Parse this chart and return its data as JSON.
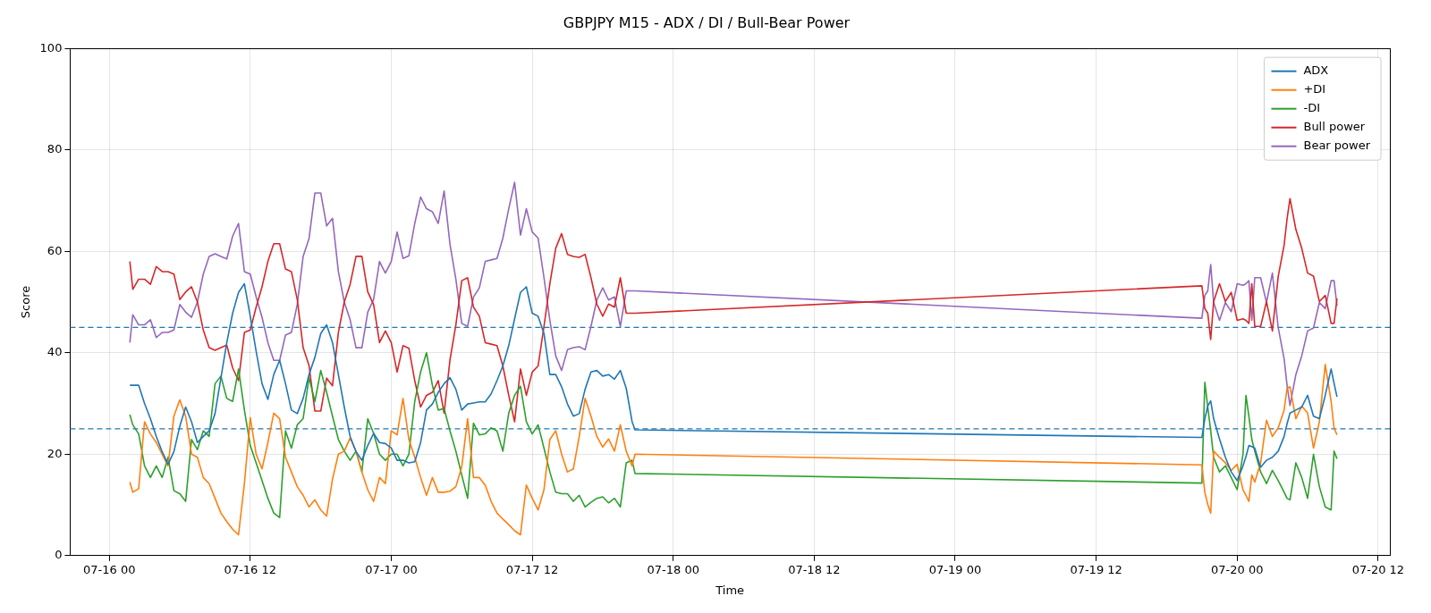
{
  "chart_data": {
    "type": "line",
    "title": "GBPJPY M15 - ADX / DI / Bull-Bear Power",
    "xlabel": "Time",
    "ylabel": "Score",
    "x": [
      "--07-16T01:45",
      "--07-16T02:00",
      "--07-16T02:30",
      "--07-16T03:00",
      "--07-16T03:30",
      "--07-16T04:00",
      "--07-16T04:30",
      "--07-16T05:00",
      "--07-16T05:30",
      "--07-16T06:00",
      "--07-16T06:30",
      "--07-16T07:00",
      "--07-16T07:30",
      "--07-16T08:00",
      "--07-16T08:30",
      "--07-16T09:00",
      "--07-16T09:30",
      "--07-16T10:00",
      "--07-16T10:30",
      "--07-16T11:00",
      "--07-16T11:30",
      "--07-16T12:00",
      "--07-16T12:30",
      "--07-16T13:00",
      "--07-16T13:30",
      "--07-16T14:00",
      "--07-16T14:30",
      "--07-16T15:00",
      "--07-16T15:30",
      "--07-16T16:00",
      "--07-16T16:30",
      "--07-16T17:00",
      "--07-16T17:30",
      "--07-16T18:00",
      "--07-16T18:30",
      "--07-16T19:00",
      "--07-16T19:30",
      "--07-16T20:00",
      "--07-16T20:30",
      "--07-16T21:00",
      "--07-16T21:30",
      "--07-16T22:00",
      "--07-16T22:30",
      "--07-16T23:00",
      "--07-16T23:30",
      "--07-17T00:00",
      "--07-17T00:30",
      "--07-17T01:00",
      "--07-17T01:30",
      "--07-17T02:00",
      "--07-17T02:30",
      "--07-17T03:00",
      "--07-17T03:30",
      "--07-17T04:00",
      "--07-17T04:30",
      "--07-17T05:00",
      "--07-17T05:30",
      "--07-17T06:00",
      "--07-17T06:30",
      "--07-17T07:00",
      "--07-17T07:30",
      "--07-17T08:00",
      "--07-17T08:30",
      "--07-17T09:00",
      "--07-17T09:30",
      "--07-17T10:00",
      "--07-17T10:30",
      "--07-17T11:00",
      "--07-17T11:30",
      "--07-17T12:00",
      "--07-17T12:30",
      "--07-17T13:00",
      "--07-17T13:30",
      "--07-17T14:00",
      "--07-17T14:30",
      "--07-17T15:00",
      "--07-17T15:30",
      "--07-17T16:00",
      "--07-17T16:30",
      "--07-17T17:00",
      "--07-17T17:30",
      "--07-17T18:00",
      "--07-17T18:30",
      "--07-17T19:00",
      "--07-17T19:30",
      "--07-17T20:00",
      "--07-17T20:30",
      "--07-17T20:45",
      "--07-19T21:00",
      "--07-19T21:15",
      "--07-19T21:30",
      "--07-19T21:45",
      "--07-19T22:00",
      "--07-19T22:30",
      "--07-19T23:00",
      "--07-19T23:30",
      "--07-20T00:00",
      "--07-20T00:30",
      "--07-20T00:45",
      "--07-20T01:00",
      "--07-20T01:15",
      "--07-20T01:30",
      "--07-20T02:00",
      "--07-20T02:30",
      "--07-20T03:00",
      "--07-20T03:30",
      "--07-20T04:00",
      "--07-20T04:15",
      "--07-20T04:30",
      "--07-20T05:00",
      "--07-20T05:30",
      "--07-20T06:00",
      "--07-20T06:30",
      "--07-20T07:00",
      "--07-20T07:30",
      "--07-20T08:00",
      "--07-20T08:15",
      "--07-20T08:30"
    ],
    "series": [
      {
        "name": "ADX",
        "color": "#1f77b4",
        "values": [
          33.6,
          33.6,
          33.6,
          30,
          27,
          23.5,
          20.5,
          18,
          20.5,
          25.5,
          29.3,
          26.4,
          22.3,
          23.5,
          24.6,
          28,
          35,
          42,
          47.8,
          51.9,
          53.6,
          47.2,
          40.3,
          33.9,
          30.8,
          35.7,
          38.5,
          33.9,
          28.7,
          28,
          31,
          35.7,
          39.1,
          43.8,
          45.5,
          42,
          35.7,
          29.3,
          23.5,
          20.5,
          18.8,
          21.7,
          24.1,
          22.3,
          22.1,
          21.2,
          18.8,
          18.8,
          18.3,
          18.5,
          22.3,
          28.7,
          29.9,
          32.2,
          33.9,
          35.1,
          32.8,
          28.7,
          29.9,
          30.1,
          30.3,
          30.3,
          31.9,
          34.5,
          37.4,
          41.4,
          46.7,
          51.9,
          53,
          47.8,
          47.2,
          43.8,
          35.7,
          35.7,
          33.3,
          29.9,
          27.5,
          28,
          32.8,
          36.2,
          36.5,
          35.4,
          35.7,
          34.8,
          36.5,
          33,
          26.4,
          24.8,
          23.3,
          27,
          29.5,
          30.5,
          27,
          23,
          19.4,
          16.5,
          14.8,
          17.7,
          19.5,
          21.7,
          21.5,
          21.2,
          17.4,
          18.8,
          19.4,
          20.6,
          23.5,
          26,
          28.1,
          28.7,
          29.3,
          31.6,
          27.5,
          27,
          31.6,
          36.8,
          34,
          31.3
        ]
      },
      {
        "name": "+DI",
        "color": "#ff7f0e",
        "values": [
          14.5,
          12.5,
          13.2,
          26.4,
          24,
          22.3,
          20,
          17.7,
          27.5,
          30.7,
          27.5,
          20,
          19.4,
          15.4,
          14.2,
          11.3,
          8.4,
          6.7,
          5.2,
          4.1,
          14.2,
          27.2,
          20,
          17.1,
          22.3,
          28.1,
          27,
          19.4,
          16.5,
          13.6,
          11.9,
          9.6,
          11,
          9,
          7.8,
          15.1,
          20,
          20.6,
          23.2,
          20.6,
          16.5,
          13,
          10.7,
          15.4,
          14.2,
          24.6,
          23.8,
          31,
          22.9,
          19.4,
          15.4,
          11.9,
          15.4,
          12.5,
          12.5,
          12.7,
          13.6,
          17.5,
          27,
          15.4,
          15.4,
          13.9,
          10.7,
          8.4,
          7.2,
          6.1,
          4.9,
          4.1,
          13.9,
          11.3,
          9,
          13,
          22.9,
          24.6,
          20,
          16.5,
          17.1,
          23.5,
          31,
          27.5,
          23.5,
          21.4,
          23,
          20.6,
          25.8,
          20.6,
          17.7,
          20,
          17.9,
          12.5,
          10.1,
          8.4,
          20.6,
          19.4,
          18.3,
          16.8,
          18,
          13,
          11.9,
          10.7,
          15.9,
          14.5,
          18.3,
          26.7,
          23.5,
          25.2,
          28.7,
          33,
          33.3,
          27,
          29.5,
          28.1,
          21.2,
          26.4,
          37.7,
          30.4,
          25.2,
          23.8
        ]
      },
      {
        "name": "-DI",
        "color": "#2ca02c",
        "values": [
          27.8,
          25.8,
          24,
          17.7,
          15.4,
          17.7,
          15.4,
          19.4,
          12.8,
          12.2,
          10.7,
          22.9,
          20.9,
          24.6,
          23.5,
          33.9,
          35.4,
          31,
          30.4,
          36.8,
          28.7,
          21.7,
          18.3,
          14.8,
          11.3,
          8.4,
          7.5,
          24.6,
          21.2,
          25.8,
          27,
          35.1,
          30.4,
          36.5,
          32.2,
          27.5,
          22.9,
          20.6,
          18.8,
          20.6,
          16.5,
          27,
          24.1,
          20,
          18.8,
          20,
          20,
          17.7,
          20,
          30.4,
          36.2,
          40,
          33.6,
          28.7,
          29,
          24.6,
          20.6,
          15.9,
          11.3,
          26.1,
          23.8,
          24,
          25.2,
          24.6,
          20.6,
          28.1,
          31.6,
          33.4,
          26.4,
          24,
          25.8,
          21.2,
          16.5,
          12.5,
          12.2,
          12.2,
          10.7,
          11.9,
          9.6,
          10.5,
          11.3,
          11.6,
          10.4,
          11.3,
          9.6,
          18.3,
          18.8,
          16.2,
          14.3,
          34.2,
          29.3,
          24.6,
          19.4,
          16.5,
          17.7,
          15.4,
          13,
          20,
          31.6,
          27.5,
          22.9,
          20.6,
          16.5,
          14.2,
          16.8,
          14.8,
          12.5,
          11.3,
          11,
          18.3,
          15.4,
          11.3,
          20,
          13.6,
          9.6,
          9,
          20.6,
          19.1
        ]
      },
      {
        "name": "Bull power",
        "color": "#d62728",
        "values": [
          58,
          52.5,
          54.5,
          54.5,
          53.5,
          57,
          56,
          56,
          55.5,
          50.5,
          52,
          53,
          50,
          44.5,
          41,
          40.5,
          41,
          41.5,
          37,
          34.5,
          44,
          44.5,
          49,
          53,
          58,
          61.5,
          61.5,
          56.5,
          56,
          50.5,
          41,
          37.5,
          28.5,
          28.5,
          35,
          33.5,
          44,
          50,
          53.5,
          59,
          59,
          52,
          49.5,
          42,
          44.3,
          42,
          36.2,
          41.4,
          40.9,
          34.5,
          29.3,
          31.6,
          32.2,
          34.5,
          28.1,
          38.6,
          45.5,
          54.2,
          54.8,
          49,
          47.2,
          42,
          41.7,
          41.4,
          37.4,
          31.6,
          26.4,
          36.8,
          31.6,
          36.2,
          37.4,
          45.2,
          53.6,
          60.6,
          63.5,
          59.4,
          59,
          58.8,
          59.4,
          54.8,
          49.6,
          47.2,
          49.6,
          49,
          54.8,
          47.8,
          47.8,
          47.8,
          53.2,
          48.7,
          47.8,
          42.6,
          50.1,
          53.6,
          50.1,
          51.9,
          46.4,
          46.7,
          46.4,
          45.8,
          53.6,
          45.2,
          45.2,
          50.1,
          44.3,
          55.1,
          61.2,
          66.4,
          70.4,
          64.3,
          60.6,
          55.7,
          55.1,
          50.1,
          51.3,
          45.8,
          45.8,
          50.7
        ]
      },
      {
        "name": "Bear power",
        "color": "#9467bd",
        "values": [
          42,
          47.5,
          45.5,
          45.5,
          46.5,
          43,
          44,
          44,
          44.5,
          49.5,
          48,
          47,
          50,
          55.5,
          59,
          59.5,
          59,
          58.5,
          63,
          65.5,
          56,
          55.5,
          51,
          47,
          42,
          38.5,
          38.5,
          43.5,
          44,
          49.5,
          59,
          62.5,
          71.5,
          71.5,
          65,
          66.5,
          56,
          50,
          46.5,
          41,
          41,
          48,
          50.5,
          58,
          55.7,
          58,
          63.8,
          58.6,
          59.1,
          65.5,
          70.7,
          68.4,
          67.8,
          65.5,
          71.9,
          61.4,
          54.5,
          45.8,
          45.2,
          51,
          52.8,
          58,
          58.3,
          58.6,
          62.6,
          68.4,
          73.6,
          63.2,
          68.4,
          63.8,
          62.6,
          54.8,
          46.4,
          39.4,
          36.5,
          40.6,
          41,
          41.2,
          40.6,
          45.2,
          50.4,
          52.8,
          50.4,
          51,
          45.2,
          52.2,
          52.2,
          52.2,
          46.8,
          51.3,
          52.2,
          57.4,
          49.9,
          46.4,
          49.9,
          48.1,
          53.6,
          53.3,
          53.6,
          54.2,
          46.4,
          54.8,
          54.8,
          49.9,
          55.7,
          44.9,
          38.8,
          33.6,
          29.6,
          35.7,
          39.4,
          44.3,
          44.9,
          49.9,
          48.7,
          54.2,
          54.2,
          49.3
        ]
      }
    ],
    "xlim": [
      "--07-15T20:40",
      "--07-20T13:00"
    ],
    "xticks": [
      {
        "value": "--07-16T00:00",
        "label": "07-16 00"
      },
      {
        "value": "--07-16T12:00",
        "label": "07-16 12"
      },
      {
        "value": "--07-17T00:00",
        "label": "07-17 00"
      },
      {
        "value": "--07-17T12:00",
        "label": "07-17 12"
      },
      {
        "value": "--07-18T00:00",
        "label": "07-18 00"
      },
      {
        "value": "--07-18T12:00",
        "label": "07-18 12"
      },
      {
        "value": "--07-19T00:00",
        "label": "07-19 00"
      },
      {
        "value": "--07-19T12:00",
        "label": "07-19 12"
      },
      {
        "value": "--07-20T00:00",
        "label": "07-20 00"
      },
      {
        "value": "--07-20T12:00",
        "label": "07-20 12"
      }
    ],
    "ylim": [
      0,
      100
    ],
    "yticks": [
      0,
      20,
      40,
      60,
      80,
      100
    ],
    "ref_lines": [
      {
        "axis": "y",
        "value": 45,
        "color": "#1f77b4",
        "line_style": "dashed"
      },
      {
        "axis": "y",
        "value": 25,
        "color": "#1f77b4",
        "line_style": "dashed"
      }
    ],
    "grid": true,
    "legend": "top right",
    "line_style": "solid",
    "marker": "none"
  }
}
